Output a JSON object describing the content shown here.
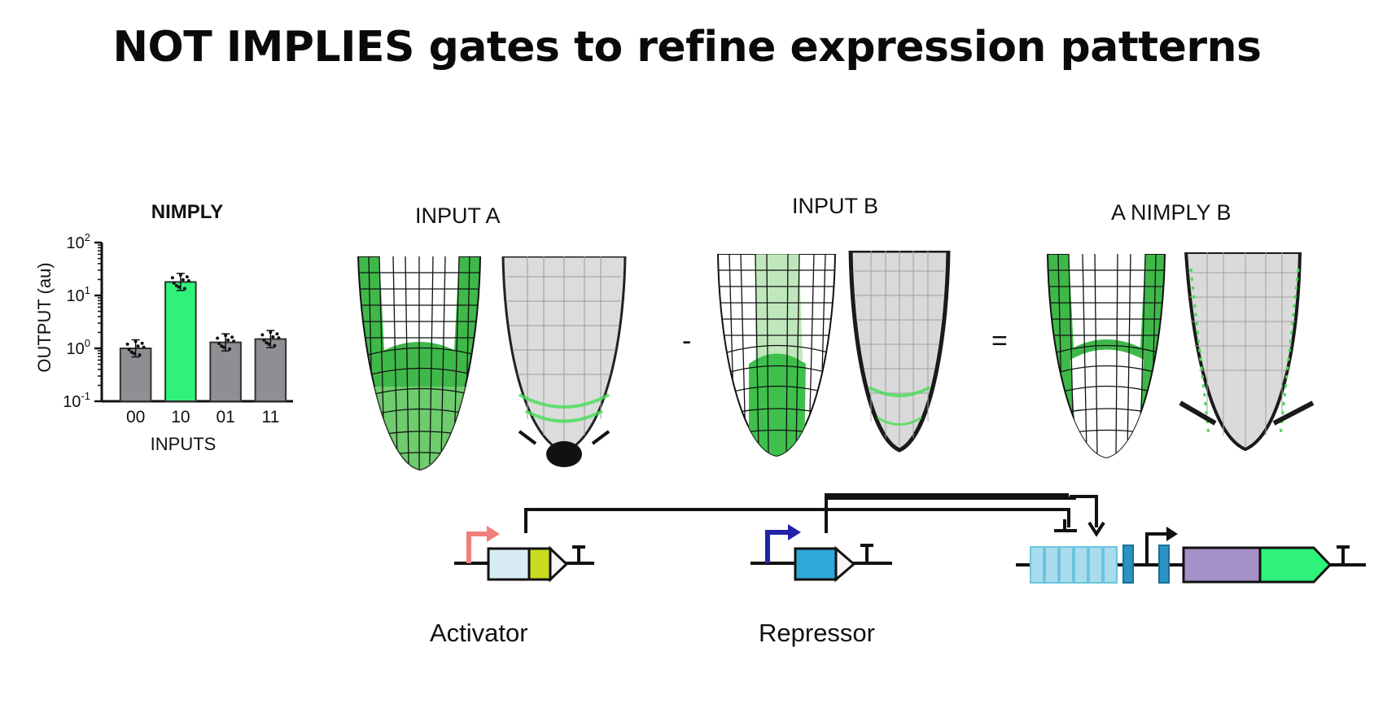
{
  "title": "NOT IMPLIES gates to refine expression patterns",
  "chart_data": {
    "type": "bar",
    "title": "NIMPLY",
    "xlabel": "INPUTS",
    "ylabel": "OUTPUT (au)",
    "yscale": "log",
    "ylim": [
      0.1,
      100
    ],
    "yticks": [
      "10^-1",
      "10^0",
      "10^1",
      "10^2"
    ],
    "categories": [
      "00",
      "10",
      "01",
      "11"
    ],
    "values": [
      1.0,
      18,
      1.3,
      1.5
    ],
    "bar_colors": [
      "#8e8e93",
      "#2ef27a",
      "#8e8e93",
      "#8e8e93"
    ],
    "show_individual_points": true,
    "grid": false
  },
  "panels": {
    "input_a": "INPUT A",
    "input_b": "INPUT B",
    "result": "A NIMPLY B",
    "minus": "-",
    "equals": "="
  },
  "circuit": {
    "activator_label": "Activator",
    "repressor_label": "Repressor",
    "colors": {
      "activator_promoter": "#f07f7a",
      "repressor_promoter": "#2222aa",
      "activator_cds": "#d8ecf5",
      "activator_domain": "#c9dd1e",
      "repressor_cds": "#2ea8d6",
      "operator_boxes": "#a9dcec",
      "operator_dark": "#2a93c2",
      "reporter_purple": "#a58fc7",
      "reporter_green": "#2ef27a"
    }
  },
  "colors": {
    "root_green": "#3dbf4d",
    "root_light_green": "#8fdc8a"
  }
}
